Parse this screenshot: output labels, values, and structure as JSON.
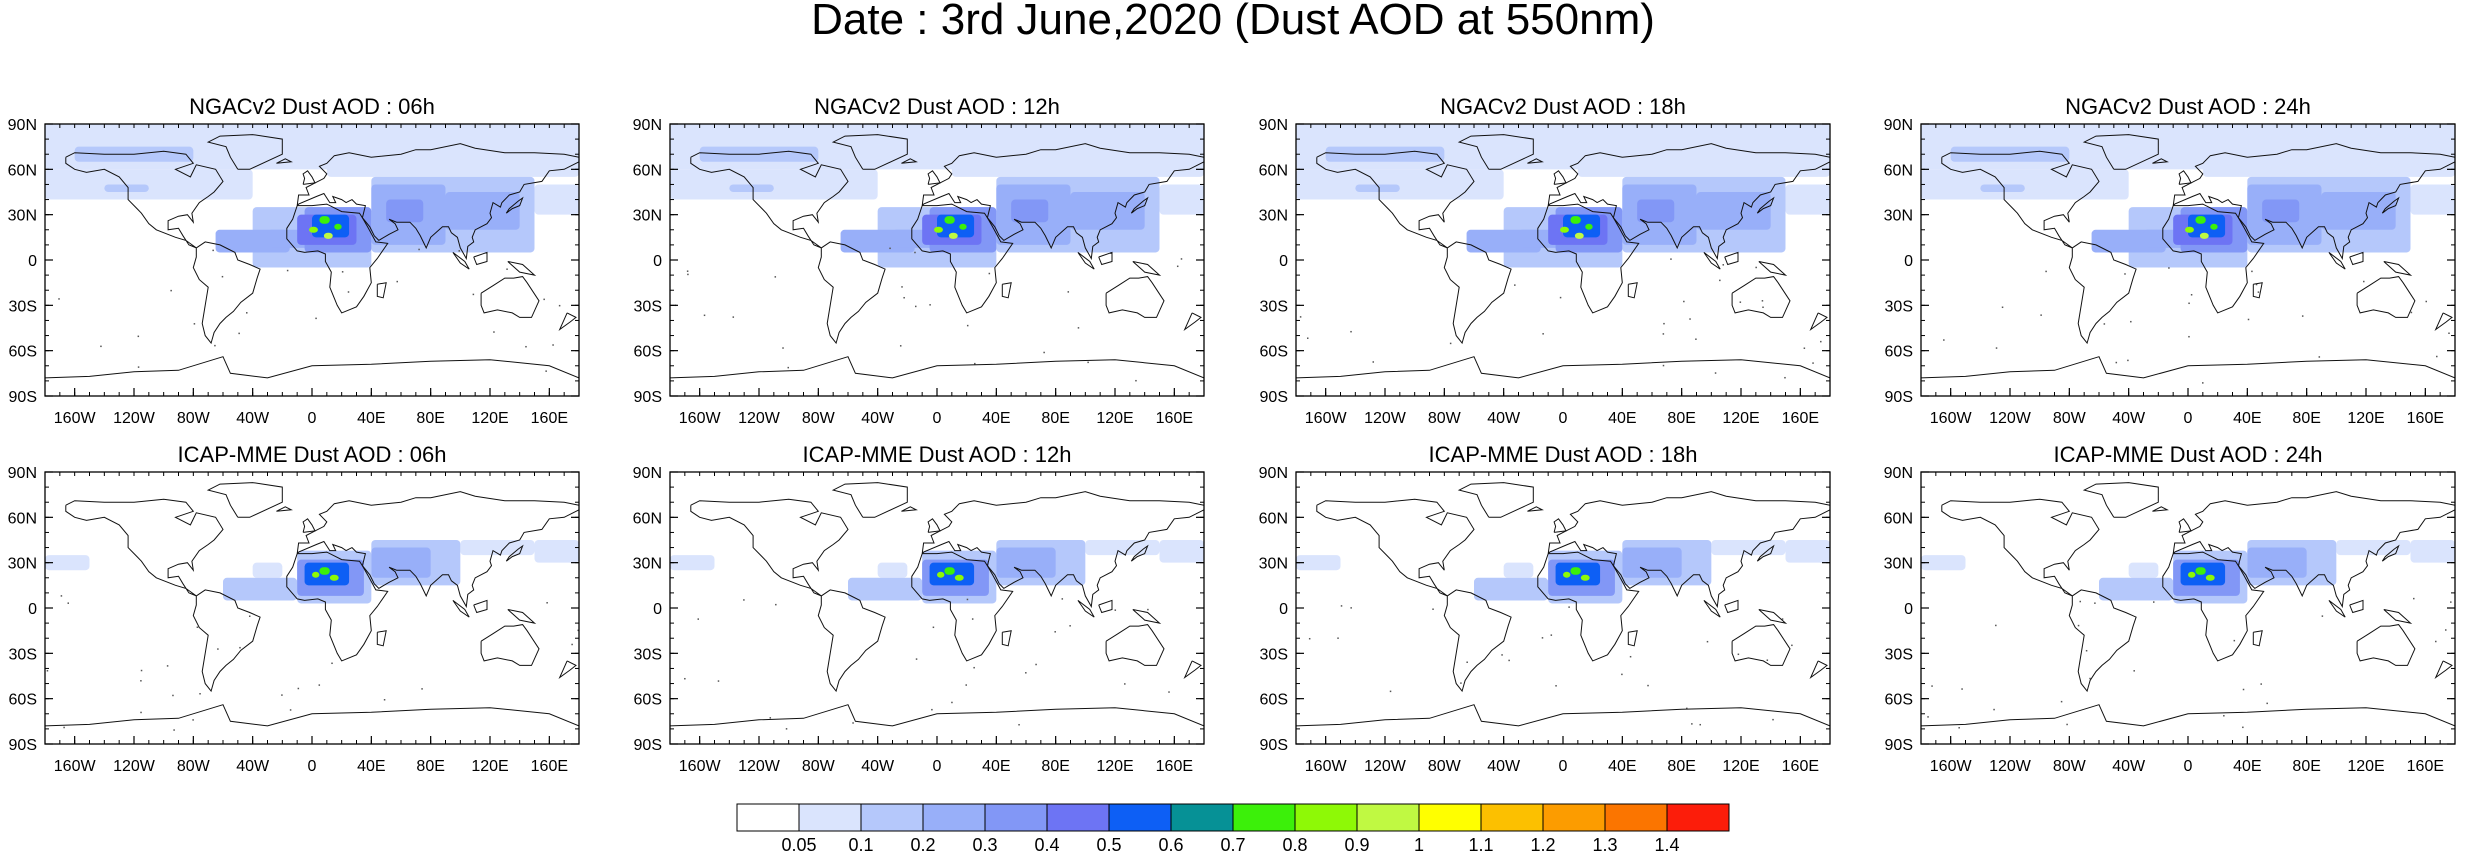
{
  "figure": {
    "title": "Date : 3rd June,2020 (Dust AOD at 550nm)"
  },
  "lat_labels": [
    "90N",
    "60N",
    "30N",
    "0",
    "30S",
    "60S",
    "90S"
  ],
  "lon_labels": [
    "160W",
    "120W",
    "80W",
    "40W",
    "0",
    "40E",
    "80E",
    "120E",
    "160E"
  ],
  "panels": [
    {
      "title": "NGACv2 Dust AOD : 06h",
      "model": "NGACv2",
      "lead": "06h"
    },
    {
      "title": "NGACv2 Dust AOD : 12h",
      "model": "NGACv2",
      "lead": "12h"
    },
    {
      "title": "NGACv2 Dust AOD : 18h",
      "model": "NGACv2",
      "lead": "18h"
    },
    {
      "title": "NGACv2 Dust AOD : 24h",
      "model": "NGACv2",
      "lead": "24h"
    },
    {
      "title": "ICAP-MME Dust AOD : 06h",
      "model": "ICAP-MME",
      "lead": "06h"
    },
    {
      "title": "ICAP-MME Dust AOD : 12h",
      "model": "ICAP-MME",
      "lead": "12h"
    },
    {
      "title": "ICAP-MME Dust AOD : 18h",
      "model": "ICAP-MME",
      "lead": "18h"
    },
    {
      "title": "ICAP-MME Dust AOD : 24h",
      "model": "ICAP-MME",
      "lead": "24h"
    }
  ],
  "colorbar": {
    "labels": [
      "0.05",
      "0.1",
      "0.2",
      "0.3",
      "0.4",
      "0.5",
      "0.6",
      "0.7",
      "0.8",
      "0.9",
      "1",
      "1.1",
      "1.2",
      "1.3",
      "1.4"
    ],
    "colors": [
      "#ffffff",
      "#dae4fd",
      "#b5c8fb",
      "#98aff9",
      "#8297f6",
      "#6d74f4",
      "#0d5ff5",
      "#069196",
      "#3cf00a",
      "#8ef906",
      "#c0f942",
      "#ffff00",
      "#fcc000",
      "#fc9c00",
      "#fb7500",
      "#fc1d0a"
    ]
  }
}
